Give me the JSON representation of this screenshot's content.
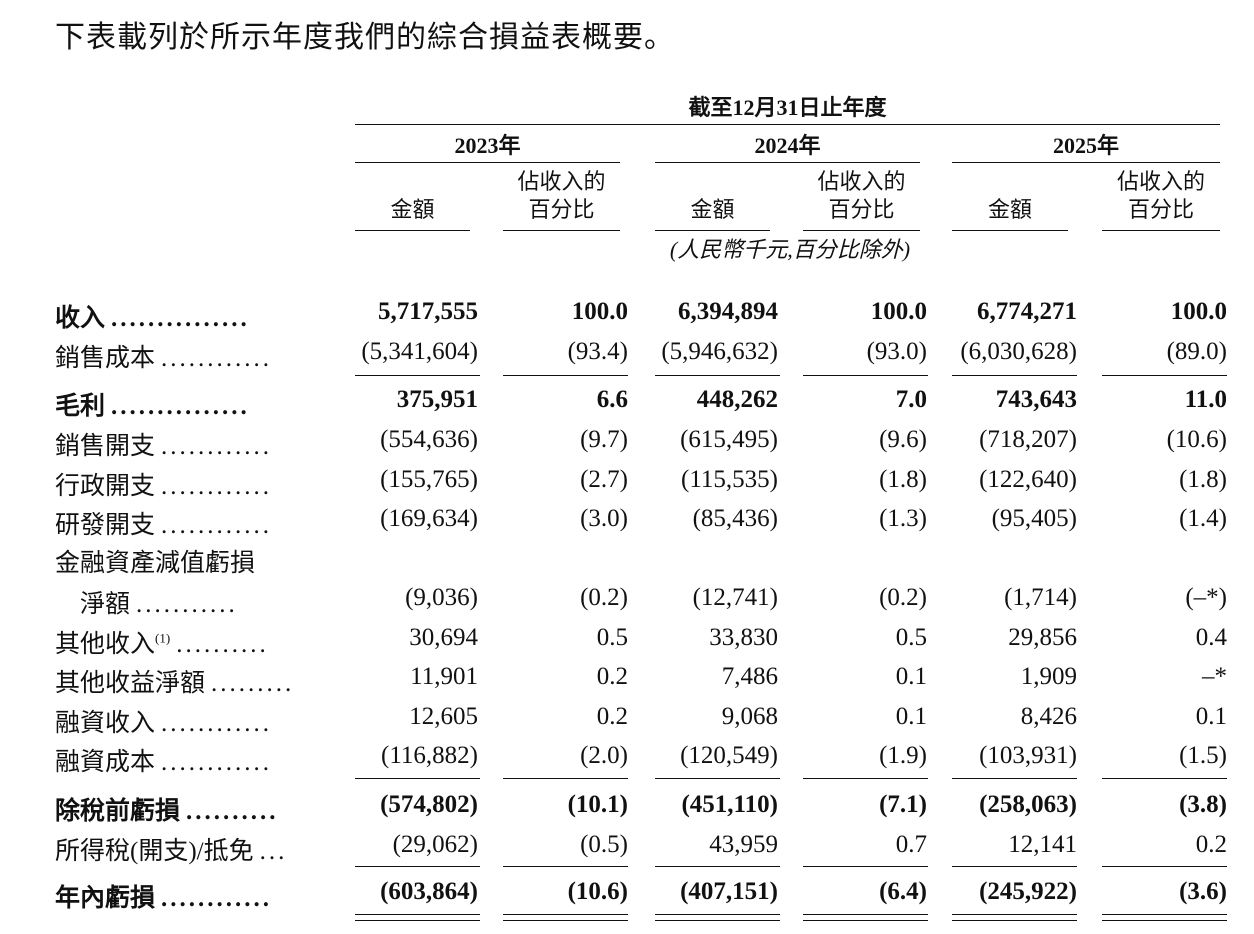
{
  "intro_text": "下表載列於所示年度我們的綜合損益表概要。",
  "period_header": "截至12月31日止年度",
  "years": [
    "2023年",
    "2024年",
    "2025年"
  ],
  "col_amount": "金額",
  "col_pct_line1": "佔收入的",
  "col_pct_line2": "百分比",
  "unit_note": "(人民幣千元,百分比除外)",
  "rows": [
    {
      "label": "收入",
      "dots": "...............",
      "bold": true,
      "values": [
        "5,717,555",
        "100.0",
        "6,394,894",
        "100.0",
        "6,774,271",
        "100.0"
      ]
    },
    {
      "label": "銷售成本",
      "dots": "............",
      "bold": false,
      "values": [
        "(5,341,604)",
        "(93.4)",
        "(5,946,632)",
        "(93.0)",
        "(6,030,628)",
        "(89.0)"
      ]
    },
    {
      "label": "毛利",
      "dots": "...............",
      "bold": true,
      "values": [
        "375,951",
        "6.6",
        "448,262",
        "7.0",
        "743,643",
        "11.0"
      ]
    },
    {
      "label": "銷售開支",
      "dots": "............",
      "bold": false,
      "values": [
        "(554,636)",
        "(9.7)",
        "(615,495)",
        "(9.6)",
        "(718,207)",
        "(10.6)"
      ]
    },
    {
      "label": "行政開支",
      "dots": "............",
      "bold": false,
      "values": [
        "(155,765)",
        "(2.7)",
        "(115,535)",
        "(1.8)",
        "(122,640)",
        "(1.8)"
      ]
    },
    {
      "label": "研發開支",
      "dots": "............",
      "bold": false,
      "values": [
        "(169,634)",
        "(3.0)",
        "(85,436)",
        "(1.3)",
        "(95,405)",
        "(1.4)"
      ]
    },
    {
      "label": "金融資產減值虧損",
      "dots": "",
      "bold": false,
      "values": [
        "",
        "",
        "",
        "",
        "",
        ""
      ]
    },
    {
      "label": "淨額",
      "dots": "...........",
      "bold": false,
      "indent": true,
      "values": [
        "(9,036)",
        "(0.2)",
        "(12,741)",
        "(0.2)",
        "(1,714)",
        "(–*)"
      ]
    },
    {
      "label": "其他收入",
      "sup": "(1)",
      "dots": "..........",
      "bold": false,
      "values": [
        "30,694",
        "0.5",
        "33,830",
        "0.5",
        "29,856",
        "0.4"
      ]
    },
    {
      "label": "其他收益淨額",
      "dots": ".........",
      "bold": false,
      "values": [
        "11,901",
        "0.2",
        "7,486",
        "0.1",
        "1,909",
        "–*"
      ]
    },
    {
      "label": "融資收入",
      "dots": "............",
      "bold": false,
      "values": [
        "12,605",
        "0.2",
        "9,068",
        "0.1",
        "8,426",
        "0.1"
      ]
    },
    {
      "label": "融資成本",
      "dots": "............",
      "bold": false,
      "values": [
        "(116,882)",
        "(2.0)",
        "(120,549)",
        "(1.9)",
        "(103,931)",
        "(1.5)"
      ]
    },
    {
      "label": "除稅前虧損",
      "dots": "..........",
      "bold": true,
      "values": [
        "(574,802)",
        "(10.1)",
        "(451,110)",
        "(7.1)",
        "(258,063)",
        "(3.8)"
      ]
    },
    {
      "label": "所得稅(開支)/抵免",
      "dots": "...",
      "bold": false,
      "values": [
        "(29,062)",
        "(0.5)",
        "43,959",
        "0.7",
        "12,141",
        "0.2"
      ]
    },
    {
      "label": "年內虧損",
      "dots": "............",
      "bold": true,
      "values": [
        "(603,864)",
        "(10.6)",
        "(407,151)",
        "(6.4)",
        "(245,922)",
        "(3.6)"
      ]
    }
  ]
}
